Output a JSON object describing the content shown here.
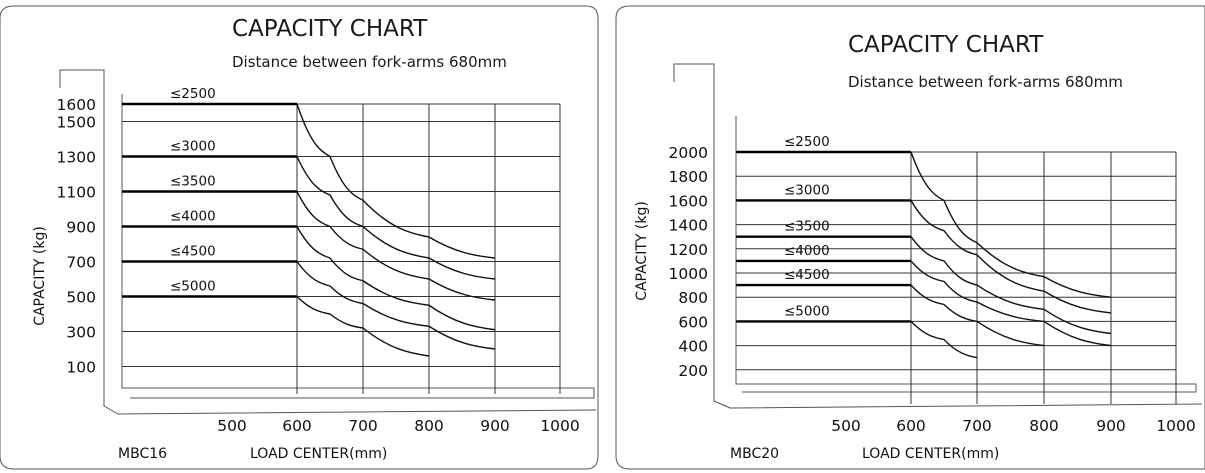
{
  "chart_data": [
    {
      "type": "line",
      "title": "CAPACITY CHART",
      "subtitle": "Distance between fork-arms 680mm",
      "model": "MBC16",
      "xlabel": "LOAD CENTER(mm)",
      "ylabel": "CAPACITY (kg)",
      "x_ticks": [
        "500",
        "600",
        "700",
        "800",
        "900",
        "1000"
      ],
      "y_ticks": [
        "1600",
        "1500",
        "1300",
        "1100",
        "900",
        "700",
        "500",
        "300",
        "100"
      ],
      "xlim": [
        500,
        1000
      ],
      "ylim": [
        0,
        1600
      ],
      "series": [
        {
          "name": "≤2500",
          "x": [
            600,
            650,
            700,
            800,
            900
          ],
          "y": [
            1600,
            1300,
            1050,
            840,
            720
          ]
        },
        {
          "name": "≤3000",
          "x": [
            600,
            650,
            700,
            800,
            900
          ],
          "y": [
            1300,
            1080,
            900,
            720,
            600
          ]
        },
        {
          "name": "≤3500",
          "x": [
            600,
            650,
            700,
            800,
            900
          ],
          "y": [
            1100,
            900,
            770,
            600,
            480
          ]
        },
        {
          "name": "≤4000",
          "x": [
            600,
            650,
            700,
            800,
            900
          ],
          "y": [
            900,
            720,
            590,
            450,
            310
          ]
        },
        {
          "name": "≤4500",
          "x": [
            600,
            650,
            700,
            800,
            900
          ],
          "y": [
            700,
            560,
            460,
            330,
            200
          ]
        },
        {
          "name": "≤5000",
          "x": [
            600,
            650,
            700,
            800
          ],
          "y": [
            500,
            400,
            320,
            160
          ]
        }
      ]
    },
    {
      "type": "line",
      "title": "CAPACITY CHART",
      "subtitle": "Distance between fork-arms 680mm",
      "model": "MBC20",
      "xlabel": "LOAD CENTER(mm)",
      "ylabel": "CAPACITY (kg)",
      "x_ticks": [
        "500",
        "600",
        "700",
        "800",
        "900",
        "1000"
      ],
      "y_ticks": [
        "2000",
        "1800",
        "1600",
        "1400",
        "1200",
        "1000",
        "800",
        "600",
        "400",
        "200"
      ],
      "xlim": [
        500,
        1000
      ],
      "ylim": [
        0,
        2000
      ],
      "series": [
        {
          "name": "≤2500",
          "x": [
            600,
            650,
            700,
            800,
            900
          ],
          "y": [
            2000,
            1600,
            1250,
            970,
            800
          ]
        },
        {
          "name": "≤3000",
          "x": [
            600,
            650,
            700,
            800,
            900
          ],
          "y": [
            1600,
            1350,
            1150,
            850,
            670
          ]
        },
        {
          "name": "≤3500",
          "x": [
            600,
            650,
            700,
            800,
            900
          ],
          "y": [
            1300,
            1100,
            900,
            700,
            500
          ]
        },
        {
          "name": "≤4000",
          "x": [
            600,
            650,
            700,
            800,
            900
          ],
          "y": [
            1100,
            930,
            760,
            600,
            400
          ]
        },
        {
          "name": "≤4500",
          "x": [
            600,
            650,
            700,
            800
          ],
          "y": [
            900,
            740,
            600,
            400
          ]
        },
        {
          "name": "≤5000",
          "x": [
            600,
            650,
            700
          ],
          "y": [
            600,
            450,
            300
          ]
        }
      ]
    }
  ]
}
